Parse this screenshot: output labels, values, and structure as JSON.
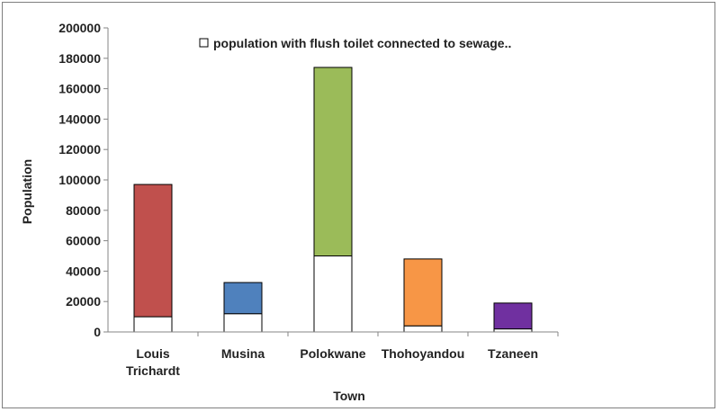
{
  "chart_data": {
    "type": "bar",
    "stacked": true,
    "categories": [
      "Louis Trichardt",
      "Musina",
      "Polokwane",
      "Thohoyandou",
      "Tzaneen"
    ],
    "category_lines": [
      [
        "Louis",
        "Trichardt"
      ],
      [
        "Musina"
      ],
      [
        "Polokwane"
      ],
      [
        "Thohoyandou"
      ],
      [
        "Tzaneen"
      ]
    ],
    "series": [
      {
        "name": "population with flush toilet connected to sewage..",
        "values": [
          10000,
          12000,
          50000,
          4000,
          2000
        ],
        "color": "#ffffff"
      },
      {
        "values": [
          87000,
          20500,
          124000,
          44000,
          17000
        ],
        "colors": [
          "#c0504d",
          "#4f81bd",
          "#9bbb59",
          "#f79646",
          "#7030a0"
        ]
      }
    ],
    "totals": [
      97000,
      32500,
      174000,
      48000,
      19000
    ],
    "xlabel": "Town",
    "ylabel": "Population",
    "ylim": [
      0,
      200000
    ],
    "yticks": [
      "0",
      "20000",
      "40000",
      "60000",
      "80000",
      "100000",
      "120000",
      "140000",
      "160000",
      "180000",
      "200000"
    ],
    "legend": {
      "position": "top",
      "entries": [
        "population with flush toilet connected to sewage.."
      ]
    },
    "grid": false
  }
}
